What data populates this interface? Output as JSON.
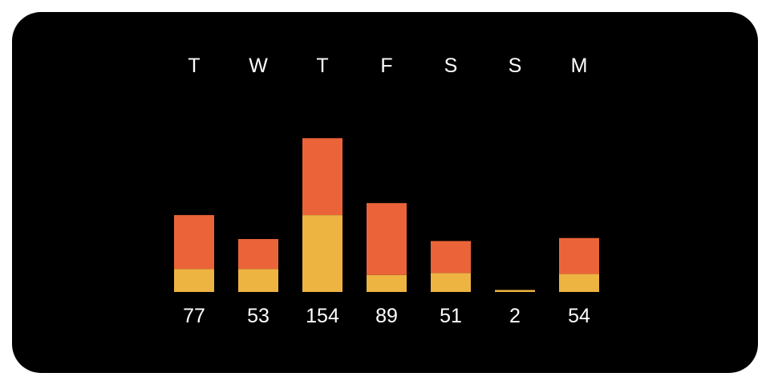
{
  "chart_data": {
    "type": "bar",
    "stacked": true,
    "categories": [
      "T",
      "W",
      "T",
      "F",
      "S",
      "S",
      "M"
    ],
    "totals": [
      "77",
      "53",
      "154",
      "89",
      "51",
      "2",
      "54"
    ],
    "series": [
      {
        "values": [
          23,
          23,
          77,
          17,
          19,
          2,
          18
        ]
      },
      {
        "values": [
          54,
          30,
          77,
          72,
          32,
          0,
          36
        ]
      }
    ],
    "grid": false,
    "legend": "none"
  },
  "colors": {
    "background": "#000000",
    "series": [
      "#EDB442",
      "#EB6439"
    ],
    "text": "#FFFFFF"
  }
}
